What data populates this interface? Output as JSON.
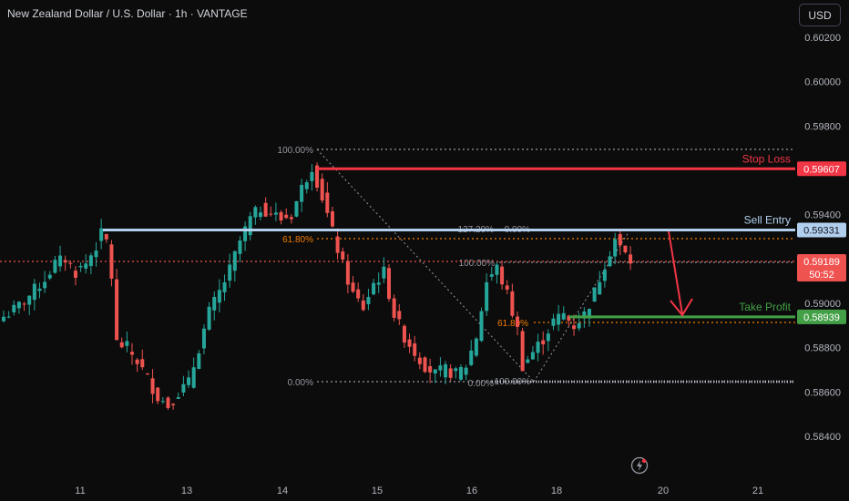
{
  "header": {
    "title": "New Zealand Dollar / U.S. Dollar · 1h · VANTAGE",
    "currency": "USD"
  },
  "icons": {
    "alert": "lightning-icon"
  },
  "colors": {
    "background": "#0c0c0c",
    "up": "#26a69a",
    "down": "#ef5350",
    "stop_loss": "#f23645",
    "sell_entry": "#b2cfee",
    "take_profit": "#43a047",
    "fib_orange": "#f57c00",
    "fib_gray": "#9598a1"
  },
  "chart_data": {
    "type": "candlestick",
    "symbol": "NZDUSD",
    "timeframe": "1h",
    "ylim": [
      0.5835,
      0.6028
    ],
    "y_ticks": [
      "0.60200",
      "0.60000",
      "0.59800",
      "0.59400",
      "0.59000",
      "0.58800",
      "0.58600",
      "0.58400"
    ],
    "x_ticks": [
      "11",
      "13",
      "14",
      "15",
      "16",
      "18",
      "20",
      "21"
    ],
    "grid": false,
    "levels": [
      {
        "label": "Stop Loss",
        "value": "0.59607",
        "price": 0.59607
      },
      {
        "label": "Sell Entry",
        "value": "0.59331",
        "price": 0.59331
      },
      {
        "label": "Take Profit",
        "value": "0.58939",
        "price": 0.58939
      }
    ],
    "current_price": {
      "value": "0.59189",
      "price": 0.59189,
      "countdown": "50:52"
    },
    "fib_labels": [
      "100.00%",
      "61.80%",
      "0.00%",
      "127.20%",
      "0.00%",
      "100.00%",
      "61.80%",
      "0.00%",
      "100.00%"
    ],
    "close_path": [
      [
        0,
        0.5894
      ],
      [
        2,
        0.5897
      ],
      [
        4,
        0.5901
      ],
      [
        6,
        0.5906
      ],
      [
        8,
        0.5911
      ],
      [
        10,
        0.5918
      ],
      [
        12,
        0.592
      ],
      [
        14,
        0.5914
      ],
      [
        16,
        0.5918
      ],
      [
        18,
        0.5926
      ],
      [
        19,
        0.5931
      ],
      [
        20,
        0.5928
      ],
      [
        21,
        0.5912
      ],
      [
        22,
        0.5882
      ],
      [
        24,
        0.588
      ],
      [
        26,
        0.5874
      ],
      [
        28,
        0.5866
      ],
      [
        30,
        0.5858
      ],
      [
        32,
        0.5854
      ],
      [
        34,
        0.586
      ],
      [
        36,
        0.5864
      ],
      [
        38,
        0.588
      ],
      [
        40,
        0.5896
      ],
      [
        42,
        0.5905
      ],
      [
        44,
        0.5915
      ],
      [
        46,
        0.5928
      ],
      [
        48,
        0.5938
      ],
      [
        50,
        0.5943
      ],
      [
        52,
        0.5941
      ],
      [
        54,
        0.5938
      ],
      [
        56,
        0.594
      ],
      [
        58,
        0.5952
      ],
      [
        60,
        0.5962
      ],
      [
        62,
        0.5948
      ],
      [
        64,
        0.5932
      ],
      [
        66,
        0.5917
      ],
      [
        68,
        0.5904
      ],
      [
        70,
        0.5898
      ],
      [
        72,
        0.5909
      ],
      [
        74,
        0.5914
      ],
      [
        76,
        0.5895
      ],
      [
        78,
        0.5885
      ],
      [
        80,
        0.5878
      ],
      [
        82,
        0.5872
      ],
      [
        84,
        0.5868
      ],
      [
        86,
        0.587
      ],
      [
        88,
        0.5868
      ],
      [
        90,
        0.5872
      ],
      [
        92,
        0.5885
      ],
      [
        94,
        0.591
      ],
      [
        96,
        0.5916
      ],
      [
        98,
        0.5904
      ],
      [
        100,
        0.5888
      ],
      [
        101,
        0.5872
      ],
      [
        103,
        0.5878
      ],
      [
        105,
        0.5884
      ],
      [
        107,
        0.5892
      ],
      [
        109,
        0.5895
      ],
      [
        111,
        0.589
      ],
      [
        113,
        0.5895
      ],
      [
        115,
        0.5905
      ],
      [
        117,
        0.5918
      ],
      [
        119,
        0.5929
      ],
      [
        120,
        0.5925
      ],
      [
        121,
        0.5922
      ],
      [
        122,
        0.5919
      ]
    ]
  }
}
